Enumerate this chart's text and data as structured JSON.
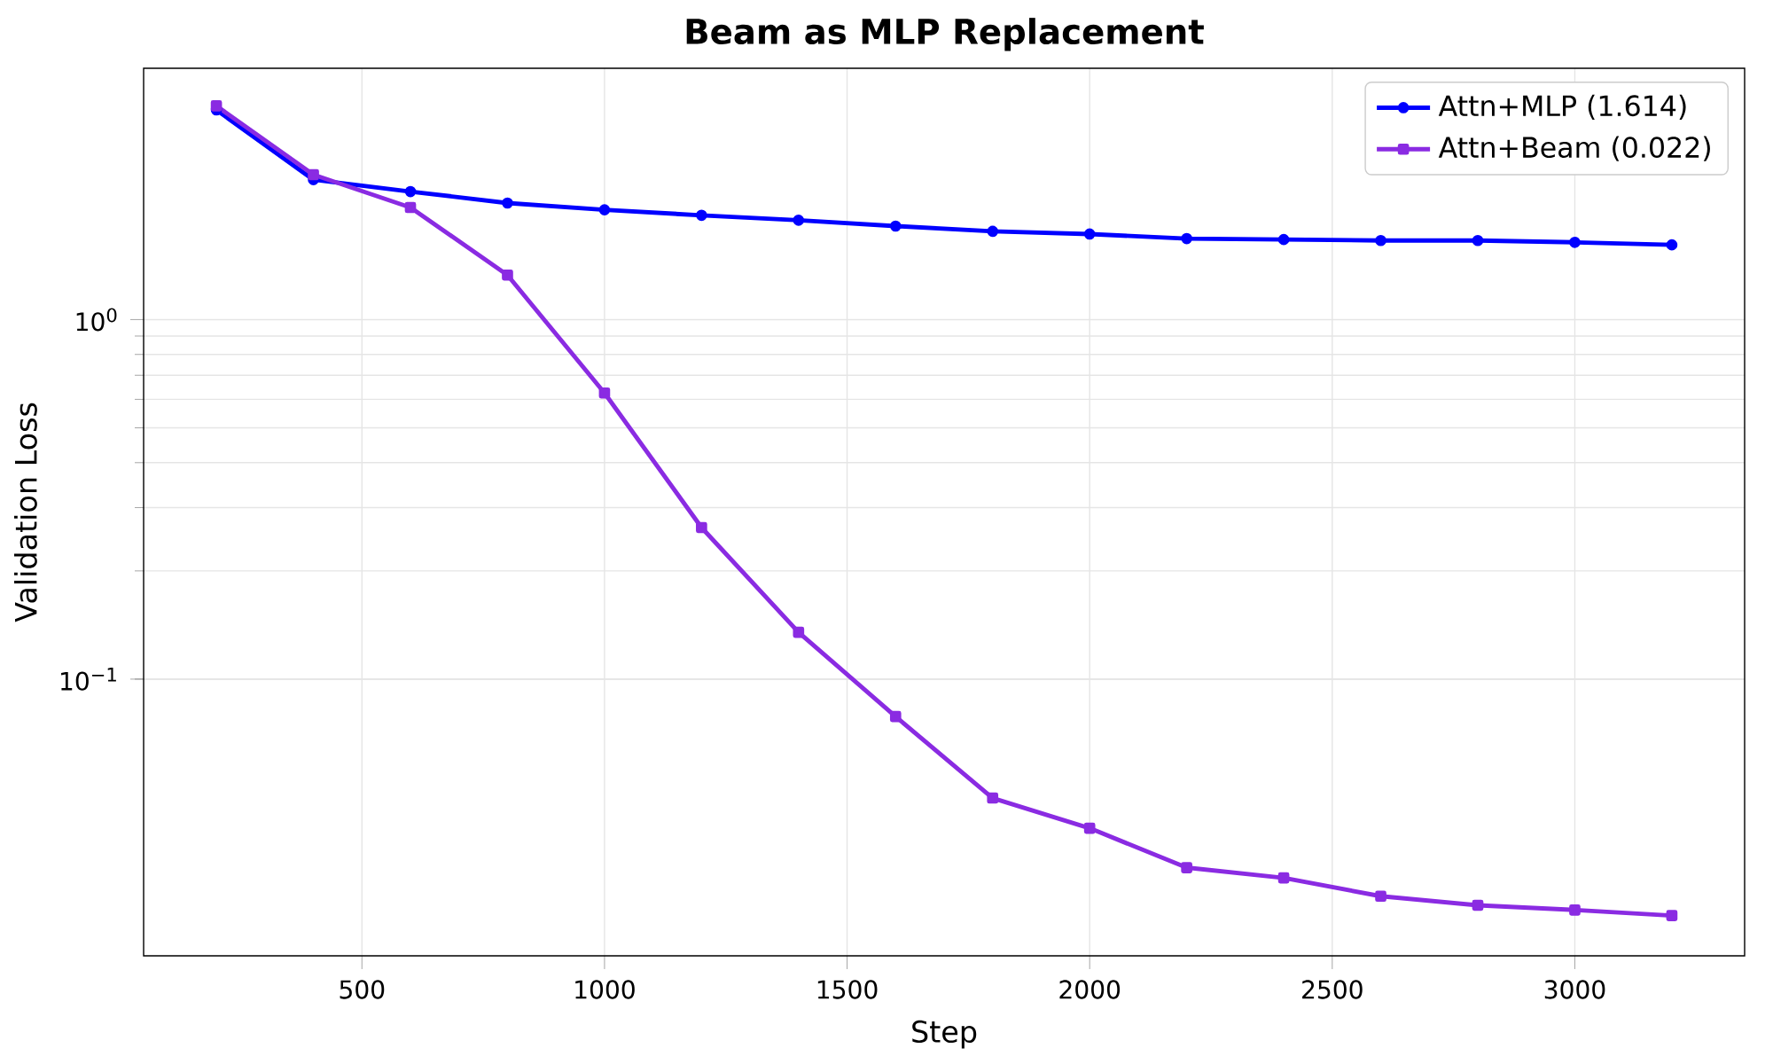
{
  "chart_data": {
    "type": "line",
    "title": "Beam as MLP Replacement",
    "xlabel": "Step",
    "ylabel": "Validation Loss",
    "x": [
      200,
      400,
      600,
      800,
      1000,
      1200,
      1400,
      1600,
      1800,
      2000,
      2200,
      2400,
      2600,
      2800,
      3000,
      3200
    ],
    "series": [
      {
        "name": "Attn+MLP (1.614)",
        "color": "#0000ff",
        "marker": "circle",
        "values": [
          3.83,
          2.45,
          2.27,
          2.11,
          2.02,
          1.95,
          1.89,
          1.82,
          1.76,
          1.73,
          1.68,
          1.67,
          1.66,
          1.66,
          1.64,
          1.614
        ]
      },
      {
        "name": "Attn+Beam (0.022)",
        "color": "#8a2be2",
        "marker": "square",
        "values": [
          3.93,
          2.53,
          2.05,
          1.33,
          0.625,
          0.264,
          0.135,
          0.0787,
          0.0467,
          0.0385,
          0.0299,
          0.028,
          0.0249,
          0.0235,
          0.0228,
          0.022
        ]
      }
    ],
    "xlim": [
      50,
      3350
    ],
    "ylim": [
      0.017,
      5.0
    ],
    "xticks": [
      500,
      1000,
      1500,
      2000,
      2500,
      3000
    ],
    "yticks": [
      {
        "value": 0.1,
        "label": "10$^{−1}$"
      },
      {
        "value": 1,
        "label": "10$^{0}$"
      }
    ],
    "log": "y",
    "grid": true,
    "legend": "top right",
    "line_style": "solid"
  }
}
